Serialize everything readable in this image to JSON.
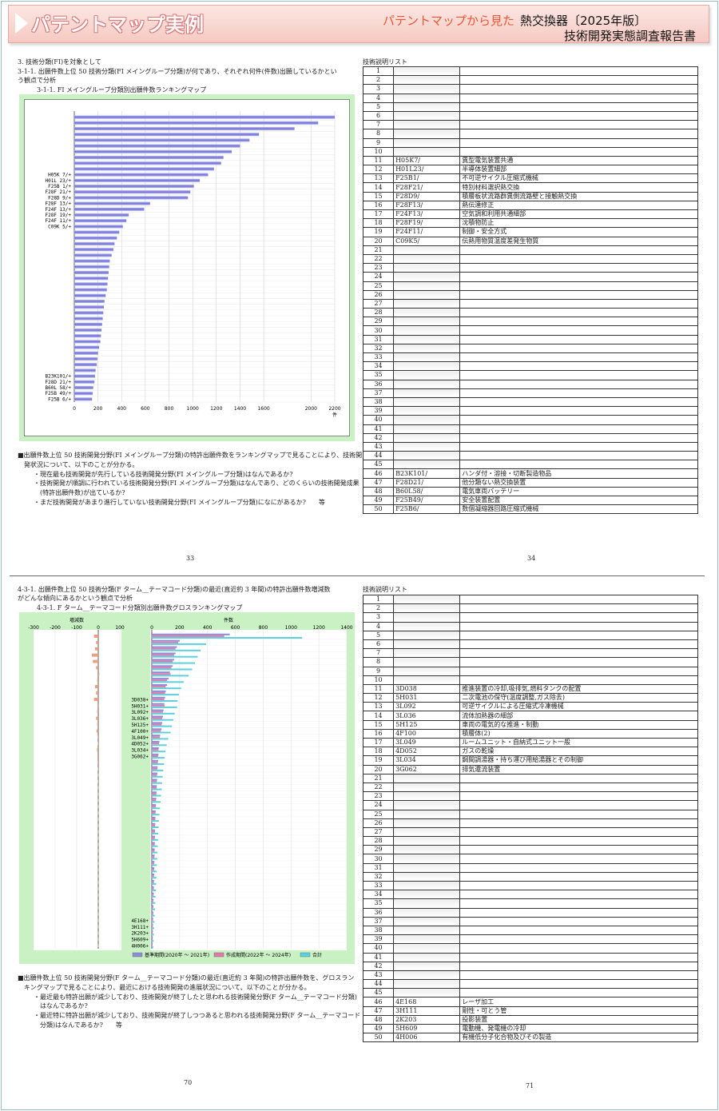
{
  "header": {
    "title": "パテントマップ実例",
    "subtitle_red": "パテントマップから見た",
    "subtitle": "熱交換器〔2025年版〕",
    "report": "技術開発実態調査報告書"
  },
  "sec1": {
    "heading": "3. 技術分類(FI)を対象として",
    "q1": "3-1-1. 出願件数上位 50 技術分類(FI メイングループ分類)が何であり、それぞれ何件(件数)出願しているかとい",
    "q2": "う観点で分析",
    "chart_title": "3-1-1. FI メイングループ分類別出願件数ランキングマップ",
    "notes": [
      "■出願件数上位 50 技術開発分野(FI メイングループ分類)の特許出願件数をランキングマップで見ることにより、技術開",
      "発状況について、以下のことが分かる。",
      "・現在最も技術開発が先行している技術開発分野(FI メイングループ分類)はなんであるか?",
      "・技術開発が順調に行われている技術開発分野(FI メイングループ分類)はなんであり、どのくらいの技術開発成果",
      "(特許出願件数)が出ているか?",
      "・まだ技術開発があまり進行していない技術開発分野(FI メイングループ分類)になにがあるか?　　等"
    ],
    "page_left": "33",
    "page_right": "34",
    "list_title": "技術説明リスト"
  },
  "sec2": {
    "q1": "4-3-1. 出願件数上位 50 技術分類(F ターム__テーマコード分類)の最近(直近約 3 年間)の特許出願件数増減数",
    "q2": "がどんな傾向にあるかという観点で分析",
    "chart_title": "4-3-1. F ターム__テーマコード分類別出願件数グロスランキングマップ",
    "notes": [
      "■出願件数上位 50 技術開発分野(F ターム__テーマコード分類)の最近(直近約 3 年間)の特許出願件数を、グロスラン",
      "キングマップで見ることにより、最近における技術開発の進展状況について、以下のことが分かる。",
      "・最近最も特許出願が減少しており、技術開発が終了したと思われる技術開発分野(F ターム__テーマコード分類)",
      "はなんであるか?",
      "・最近特に特許出願が減少しており、技術開発が終了しつつあると思われる技術開発分野(F ターム__テーマコード",
      "分類)はなんであるか?　　等"
    ],
    "page_left": "70",
    "page_right": "71",
    "list_title": "技術説明リスト",
    "legend": [
      "基準期間(2020年 ～ 2021年)",
      "作成期間(2022年 ～ 2024年)",
      "合計"
    ],
    "left_axis_label": "増減数",
    "right_axis_label": "件数"
  },
  "list1": [
    {
      "no": "1",
      "code": "",
      "desc": ""
    },
    {
      "no": "2",
      "code": "",
      "desc": ""
    },
    {
      "no": "3",
      "code": "",
      "desc": ""
    },
    {
      "no": "4",
      "code": "",
      "desc": ""
    },
    {
      "no": "5",
      "code": "",
      "desc": ""
    },
    {
      "no": "6",
      "code": "",
      "desc": ""
    },
    {
      "no": "7",
      "code": "",
      "desc": ""
    },
    {
      "no": "8",
      "code": "",
      "desc": ""
    },
    {
      "no": "9",
      "code": "",
      "desc": ""
    },
    {
      "no": "10",
      "code": "",
      "desc": ""
    },
    {
      "no": "11",
      "code": "H05K7/",
      "desc": "異型電気装置共通"
    },
    {
      "no": "12",
      "code": "H01L23/",
      "desc": "半導体装置細部"
    },
    {
      "no": "13",
      "code": "F25B1/",
      "desc": "不可逆サイクル圧縮式機械"
    },
    {
      "no": "14",
      "code": "F28F21/",
      "desc": "特別材料選択熱交換"
    },
    {
      "no": "15",
      "code": "F28D9/",
      "desc": "積層板状流路群異側流路壁と接触熱交換"
    },
    {
      "no": "16",
      "code": "F28F13/",
      "desc": "熱伝達修正"
    },
    {
      "no": "17",
      "code": "F24F13/",
      "desc": "空気調和利用共通細部"
    },
    {
      "no": "18",
      "code": "F28F19/",
      "desc": "沈積物防止"
    },
    {
      "no": "19",
      "code": "F24F11/",
      "desc": "制御・安全方式"
    },
    {
      "no": "20",
      "code": "C09K5/",
      "desc": "伝熱用物質温度差発生物質"
    },
    {
      "no": "21",
      "code": "",
      "desc": ""
    },
    {
      "no": "22",
      "code": "",
      "desc": ""
    },
    {
      "no": "23",
      "code": "",
      "desc": ""
    },
    {
      "no": "24",
      "code": "",
      "desc": ""
    },
    {
      "no": "25",
      "code": "",
      "desc": ""
    },
    {
      "no": "26",
      "code": "",
      "desc": ""
    },
    {
      "no": "27",
      "code": "",
      "desc": ""
    },
    {
      "no": "28",
      "code": "",
      "desc": ""
    },
    {
      "no": "29",
      "code": "",
      "desc": ""
    },
    {
      "no": "30",
      "code": "",
      "desc": ""
    },
    {
      "no": "31",
      "code": "",
      "desc": ""
    },
    {
      "no": "32",
      "code": "",
      "desc": ""
    },
    {
      "no": "33",
      "code": "",
      "desc": ""
    },
    {
      "no": "34",
      "code": "",
      "desc": ""
    },
    {
      "no": "35",
      "code": "",
      "desc": ""
    },
    {
      "no": "36",
      "code": "",
      "desc": ""
    },
    {
      "no": "37",
      "code": "",
      "desc": ""
    },
    {
      "no": "38",
      "code": "",
      "desc": ""
    },
    {
      "no": "39",
      "code": "",
      "desc": ""
    },
    {
      "no": "40",
      "code": "",
      "desc": ""
    },
    {
      "no": "41",
      "code": "",
      "desc": ""
    },
    {
      "no": "42",
      "code": "",
      "desc": ""
    },
    {
      "no": "43",
      "code": "",
      "desc": ""
    },
    {
      "no": "44",
      "code": "",
      "desc": ""
    },
    {
      "no": "45",
      "code": "",
      "desc": ""
    },
    {
      "no": "46",
      "code": "B23K101/",
      "desc": "ハンダ付・溶接・切断製造物品"
    },
    {
      "no": "47",
      "code": "F28D21/",
      "desc": "他分類ない熱交換装置"
    },
    {
      "no": "48",
      "code": "B60L58/",
      "desc": "電気車両バッテリー"
    },
    {
      "no": "49",
      "code": "F25B49/",
      "desc": "安全装置配置"
    },
    {
      "no": "50",
      "code": "F25B6/",
      "desc": "数個凝縮器回路圧縮式機械"
    }
  ],
  "list2": [
    {
      "no": "1",
      "code": "",
      "desc": ""
    },
    {
      "no": "2",
      "code": "",
      "desc": ""
    },
    {
      "no": "3",
      "code": "",
      "desc": ""
    },
    {
      "no": "4",
      "code": "",
      "desc": ""
    },
    {
      "no": "5",
      "code": "",
      "desc": ""
    },
    {
      "no": "6",
      "code": "",
      "desc": ""
    },
    {
      "no": "7",
      "code": "",
      "desc": ""
    },
    {
      "no": "8",
      "code": "",
      "desc": ""
    },
    {
      "no": "9",
      "code": "",
      "desc": ""
    },
    {
      "no": "10",
      "code": "",
      "desc": ""
    },
    {
      "no": "11",
      "code": "3D038",
      "desc": "推進装置の冷却,吸排気,燃料タンクの配置"
    },
    {
      "no": "12",
      "code": "5H031",
      "desc": "二次電池の保守(温度調整,ガス除去)"
    },
    {
      "no": "13",
      "code": "3L092",
      "desc": "可逆サイクルによる圧縮式冷凍機械"
    },
    {
      "no": "14",
      "code": "3L036",
      "desc": "流体加熱器の細部"
    },
    {
      "no": "15",
      "code": "5H125",
      "desc": "車両の電気的な推進・制動"
    },
    {
      "no": "16",
      "code": "4F100",
      "desc": "積層体(2)"
    },
    {
      "no": "17",
      "code": "3L049",
      "desc": "ルームユニット・自納式ユニット一般"
    },
    {
      "no": "18",
      "code": "4D052",
      "desc": "ガスの乾燥"
    },
    {
      "no": "19",
      "code": "3L034",
      "desc": "鋼間調湯器・持ち運び用給湯器とその制御"
    },
    {
      "no": "20",
      "code": "3G062",
      "desc": "排気還流装置"
    },
    {
      "no": "21",
      "code": "",
      "desc": ""
    },
    {
      "no": "22",
      "code": "",
      "desc": ""
    },
    {
      "no": "23",
      "code": "",
      "desc": ""
    },
    {
      "no": "24",
      "code": "",
      "desc": ""
    },
    {
      "no": "25",
      "code": "",
      "desc": ""
    },
    {
      "no": "26",
      "code": "",
      "desc": ""
    },
    {
      "no": "27",
      "code": "",
      "desc": ""
    },
    {
      "no": "28",
      "code": "",
      "desc": ""
    },
    {
      "no": "29",
      "code": "",
      "desc": ""
    },
    {
      "no": "30",
      "code": "",
      "desc": ""
    },
    {
      "no": "31",
      "code": "",
      "desc": ""
    },
    {
      "no": "32",
      "code": "",
      "desc": ""
    },
    {
      "no": "33",
      "code": "",
      "desc": ""
    },
    {
      "no": "34",
      "code": "",
      "desc": ""
    },
    {
      "no": "35",
      "code": "",
      "desc": ""
    },
    {
      "no": "36",
      "code": "",
      "desc": ""
    },
    {
      "no": "37",
      "code": "",
      "desc": ""
    },
    {
      "no": "38",
      "code": "",
      "desc": ""
    },
    {
      "no": "39",
      "code": "",
      "desc": ""
    },
    {
      "no": "40",
      "code": "",
      "desc": ""
    },
    {
      "no": "41",
      "code": "",
      "desc": ""
    },
    {
      "no": "42",
      "code": "",
      "desc": ""
    },
    {
      "no": "43",
      "code": "",
      "desc": ""
    },
    {
      "no": "44",
      "code": "",
      "desc": ""
    },
    {
      "no": "45",
      "code": "",
      "desc": ""
    },
    {
      "no": "46",
      "code": "4E168",
      "desc": "レーザ加工"
    },
    {
      "no": "47",
      "code": "3H111",
      "desc": "剛性・可とう管"
    },
    {
      "no": "48",
      "code": "2K203",
      "desc": "投影装置"
    },
    {
      "no": "49",
      "code": "5H609",
      "desc": "電動機、発電機の冷却"
    },
    {
      "no": "50",
      "code": "4H006",
      "desc": "有機低分子化合物及びその製造"
    }
  ],
  "chart_data": [
    {
      "type": "bar",
      "orientation": "horizontal",
      "xlim": [
        0,
        2200
      ],
      "xticks": [
        "0",
        "200",
        "400",
        "600",
        "800",
        "1000",
        "1200",
        "1400",
        "1600",
        "2000",
        "2200"
      ],
      "unit": "件",
      "ylabels": [
        {
          "rank": 11,
          "label": "H05K 7/+"
        },
        {
          "rank": 12,
          "label": "H01L 23/+"
        },
        {
          "rank": 13,
          "label": "F25B 1/+"
        },
        {
          "rank": 14,
          "label": "F28F 21/+"
        },
        {
          "rank": 15,
          "label": "F28D 9/+"
        },
        {
          "rank": 16,
          "label": "F28F 13/+"
        },
        {
          "rank": 17,
          "label": "F24F 13/+"
        },
        {
          "rank": 18,
          "label": "F28F 19/+"
        },
        {
          "rank": 19,
          "label": "F24F 11/+"
        },
        {
          "rank": 20,
          "label": "C09K 5/+"
        },
        {
          "rank": 46,
          "label": "B23K101/+"
        },
        {
          "rank": 47,
          "label": "F28D 21/+"
        },
        {
          "rank": 48,
          "label": "B60L 58/+"
        },
        {
          "rank": 49,
          "label": "F25B 49/+"
        },
        {
          "rank": 50,
          "label": "F25B 6/+"
        }
      ],
      "values": [
        2200,
        2060,
        1860,
        1560,
        1480,
        1400,
        1330,
        1260,
        1240,
        1180,
        1130,
        1060,
        1010,
        980,
        960,
        640,
        590,
        460,
        440,
        410,
        380,
        360,
        340,
        330,
        315,
        300,
        295,
        290,
        285,
        280,
        275,
        265,
        255,
        250,
        245,
        240,
        235,
        230,
        225,
        220,
        210,
        200,
        195,
        190,
        180,
        175,
        170,
        160,
        155,
        150
      ]
    },
    {
      "type": "bar",
      "orientation": "horizontal",
      "subtype": "gross-ranking",
      "left_xlim": [
        -300,
        100
      ],
      "left_xticks": [
        "-300",
        "-200",
        "-100",
        "0",
        "100"
      ],
      "right_xlim": [
        0,
        1400
      ],
      "right_xticks": [
        "0",
        "200",
        "400",
        "600",
        "800",
        "1000",
        "1200",
        "1400"
      ],
      "ylabels": [
        {
          "rank": 11,
          "label": "3D038+"
        },
        {
          "rank": 12,
          "label": "5H031+"
        },
        {
          "rank": 13,
          "label": "3L092+"
        },
        {
          "rank": 14,
          "label": "3L036+"
        },
        {
          "rank": 15,
          "label": "5H125+"
        },
        {
          "rank": 16,
          "label": "4F100+"
        },
        {
          "rank": 17,
          "label": "3L049+"
        },
        {
          "rank": 18,
          "label": "4D052+"
        },
        {
          "rank": 19,
          "label": "3L034+"
        },
        {
          "rank": 20,
          "label": "3G062+"
        },
        {
          "rank": 46,
          "label": "4E168+"
        },
        {
          "rank": 47,
          "label": "3H111+"
        },
        {
          "rank": 48,
          "label": "2K203+"
        },
        {
          "rank": 49,
          "label": "5H609+"
        },
        {
          "rank": 50,
          "label": "4H006+"
        }
      ],
      "change": [
        -20,
        -10,
        -15,
        -30,
        -25,
        -10,
        5,
        -5,
        -15,
        -10,
        -20,
        3,
        -5,
        -10,
        -5,
        -8,
        -3,
        -2,
        -6,
        -4,
        -3,
        -2,
        -1,
        -2,
        -1,
        -1,
        -1,
        -1,
        -1,
        -1,
        -1,
        -1,
        -1,
        -1,
        -1,
        -1,
        -1,
        -1,
        -1,
        -1,
        -1,
        -1,
        -1,
        -1,
        -1,
        -1,
        -1,
        -1,
        -1,
        -1
      ],
      "base": [
        560,
        200,
        180,
        170,
        160,
        150,
        130,
        120,
        110,
        100,
        95,
        90,
        85,
        80,
        75,
        70,
        60,
        55,
        50,
        48,
        45,
        42,
        40,
        38,
        36,
        34,
        32,
        30,
        28,
        26,
        25,
        24,
        23,
        22,
        21,
        20,
        19,
        18,
        17,
        16,
        15,
        14,
        13,
        12,
        11,
        10,
        9,
        8,
        7,
        6
      ],
      "current": [
        520,
        190,
        170,
        160,
        150,
        140,
        135,
        110,
        100,
        95,
        90,
        92,
        80,
        75,
        70,
        65,
        58,
        52,
        48,
        45,
        43,
        40,
        38,
        36,
        35,
        33,
        31,
        29,
        27,
        25,
        24,
        23,
        22,
        21,
        20,
        19,
        18,
        17,
        16,
        15,
        14,
        13,
        12,
        11,
        10,
        9,
        8,
        7,
        6,
        5
      ],
      "total": [
        1080,
        390,
        350,
        330,
        310,
        290,
        265,
        230,
        210,
        195,
        185,
        182,
        165,
        155,
        145,
        135,
        118,
        107,
        98,
        93,
        88,
        82,
        78,
        74,
        71,
        67,
        63,
        59,
        55,
        51,
        49,
        47,
        45,
        43,
        41,
        39,
        37,
        35,
        33,
        31,
        29,
        27,
        25,
        23,
        21,
        19,
        17,
        15,
        13,
        11
      ]
    }
  ],
  "colors": {
    "bar": "#7070d8",
    "change": "#e8a080",
    "base": "#8c8cd8",
    "current": "#e07aa8",
    "total": "#5cd0dc",
    "chart_bg": "#c9f1c4"
  }
}
